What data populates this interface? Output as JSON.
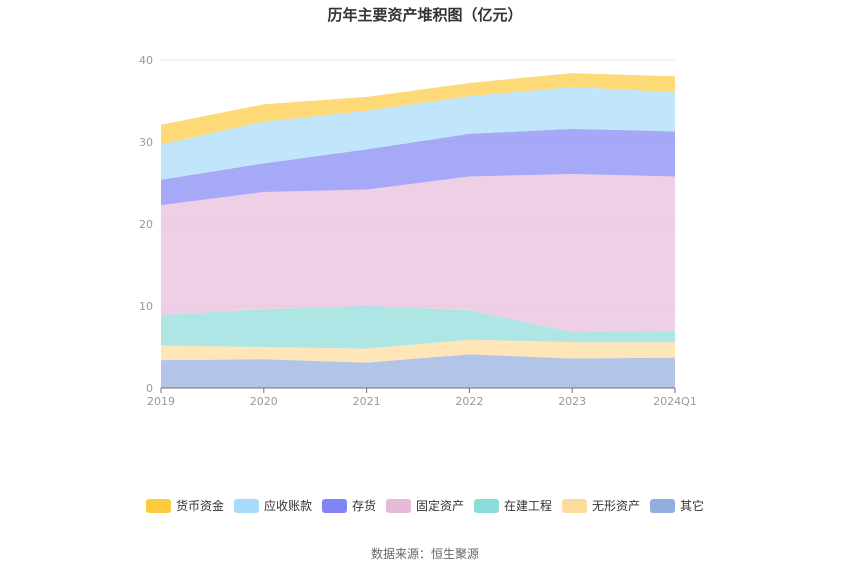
{
  "chart_data": {
    "type": "area",
    "stacked": true,
    "title": "历年主要资产堆积图（亿元）",
    "categories": [
      "2019",
      "2020",
      "2021",
      "2022",
      "2023",
      "2024Q1"
    ],
    "ylim": [
      0,
      40
    ],
    "yticks": [
      "0",
      "10",
      "20",
      "30",
      "40"
    ],
    "grid": true,
    "legend_position": "bottom",
    "series": [
      {
        "name": "其它",
        "color": "#91acde",
        "values": [
          3.4,
          3.5,
          3.1,
          4.1,
          3.6,
          3.7
        ]
      },
      {
        "name": "无形资产",
        "color": "#fedb9b",
        "values": [
          1.8,
          1.5,
          1.7,
          1.8,
          2.0,
          1.9
        ]
      },
      {
        "name": "在建工程",
        "color": "#8adcd9",
        "values": [
          3.7,
          4.6,
          5.2,
          3.6,
          1.2,
          1.4
        ]
      },
      {
        "name": "固定资产",
        "color": "#e8bada",
        "values": [
          13.4,
          14.3,
          14.2,
          16.3,
          19.3,
          18.8
        ]
      },
      {
        "name": "存货",
        "color": "#8084f4",
        "values": [
          3.1,
          3.5,
          4.9,
          5.2,
          5.5,
          5.5
        ]
      },
      {
        "name": "应收账款",
        "color": "#a6dcf9",
        "values": [
          4.3,
          5.1,
          4.7,
          4.6,
          5.1,
          4.8
        ]
      },
      {
        "name": "货币资金",
        "color": "#fccb3d",
        "values": [
          2.4,
          2.1,
          1.7,
          1.6,
          1.7,
          1.9
        ]
      }
    ],
    "legend_order": [
      "货币资金",
      "应收账款",
      "存货",
      "固定资产",
      "在建工程",
      "无形资产",
      "其它"
    ]
  },
  "source": "数据来源：恒生聚源"
}
